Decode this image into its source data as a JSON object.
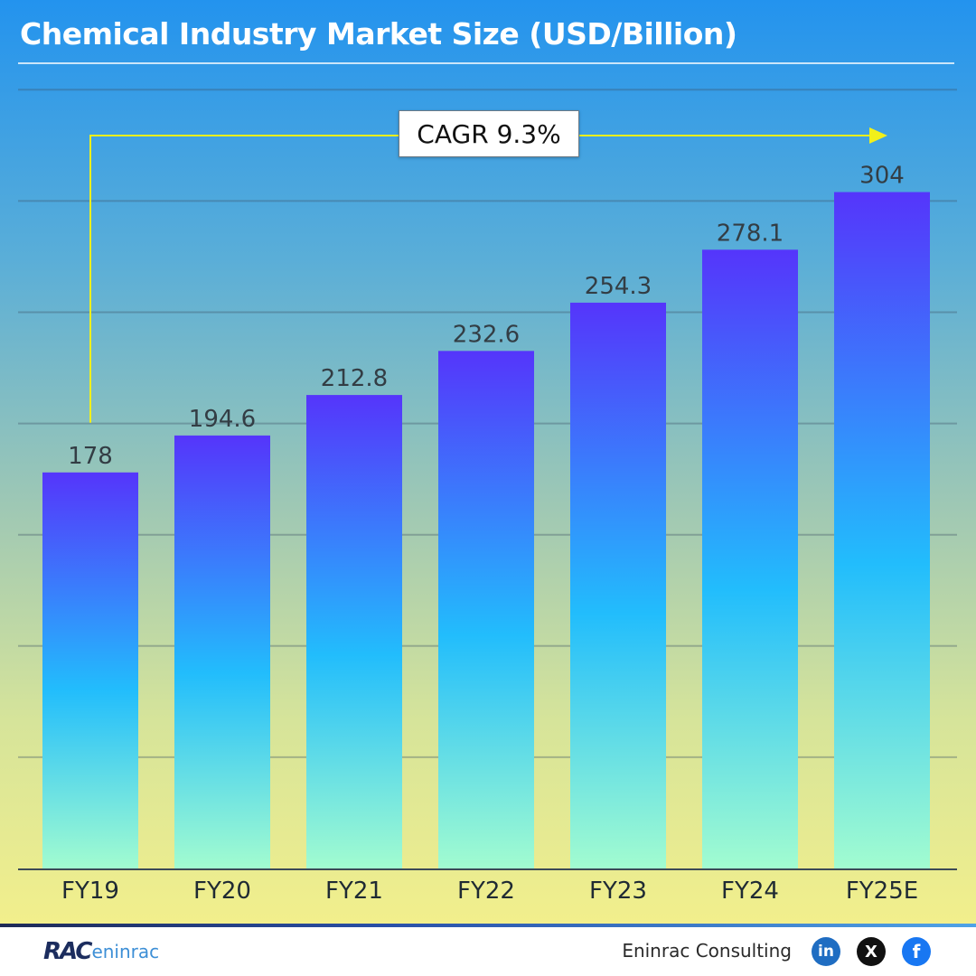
{
  "chart_data": {
    "type": "bar",
    "title": "Chemical Industry Market Size (USD/Billion)",
    "categories": [
      "FY19",
      "FY20",
      "FY21",
      "FY22",
      "FY23",
      "FY24",
      "FY25E"
    ],
    "values": [
      178,
      194.6,
      212.8,
      232.6,
      254.3,
      278.1,
      304
    ],
    "value_labels": [
      "178",
      "194.6",
      "212.8",
      "232.6",
      "254.3",
      "278.1",
      "304"
    ],
    "xlabel": "",
    "ylabel": "",
    "ylim": [
      0,
      350
    ],
    "grid": true,
    "bar_gradient": [
      "#5535fb",
      "#22bdfc",
      "#a2fcd0"
    ],
    "annotation": {
      "text": "CAGR 9.3%",
      "from": "FY19",
      "to": "FY25E",
      "color": "#f2f01a"
    }
  },
  "footer": {
    "logo_mark": "RAC",
    "logo_word": "eninrac",
    "company": "Eninrac Consulting",
    "social": [
      {
        "icon": "linkedin-icon",
        "glyph": "in"
      },
      {
        "icon": "x-twitter-icon",
        "glyph": "X"
      },
      {
        "icon": "facebook-icon",
        "glyph": "f"
      }
    ]
  },
  "colors": {
    "title_text": "#ffffff",
    "accent_arrow": "#f2f01a",
    "bar_top": "#5535fb",
    "bar_bottom": "#a2fcd0"
  }
}
